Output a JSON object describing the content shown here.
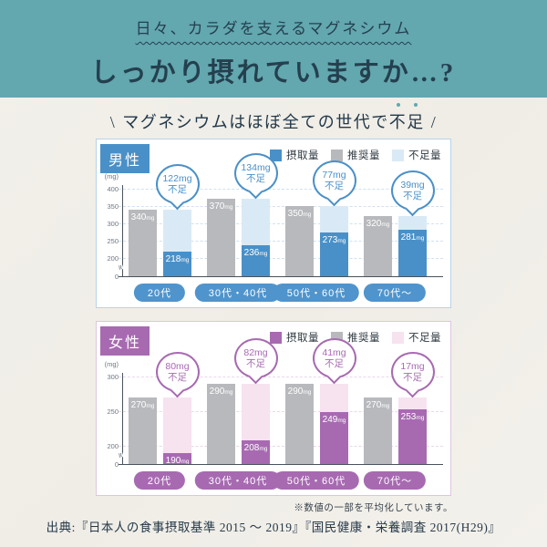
{
  "page": {
    "background": "#f1efe9",
    "header": {
      "bg": "#63a7af",
      "text_color": "#24404f",
      "subtitle": "日々、カラダを支えるマグネシウム",
      "title": "しっかり摂れていますか…?"
    },
    "lead": {
      "open": "\\",
      "before": "マグネシウムはほぼ全ての世代で",
      "emphasis": "不足",
      "close": "/",
      "dot_color": "#63a7af"
    },
    "footnote": "※数値の一部を平均化しています。",
    "source": "出典:『日本人の食事摂取基準 2015 〜 2019』『国民健康・栄養調査 2017(H29)』"
  },
  "chart_data": [
    {
      "type": "bar",
      "group": "男性",
      "axis_label": "(mg)",
      "unit": "mg",
      "deficit_word": "不足",
      "categories": [
        "20代",
        "30代・40代",
        "50代・60代",
        "70代〜"
      ],
      "series": [
        {
          "name": "摂取量",
          "role": "intake",
          "values": [
            218,
            236,
            273,
            281
          ]
        },
        {
          "name": "推奨量",
          "role": "recommended",
          "values": [
            340,
            370,
            350,
            320
          ]
        },
        {
          "name": "不足量",
          "role": "deficit",
          "values": [
            122,
            134,
            77,
            39
          ]
        }
      ],
      "legend": [
        "摂取量",
        "推奨量",
        "不足量"
      ],
      "legend_position": "top-right",
      "grid": true,
      "axis_break": true,
      "yticks": [
        400,
        350,
        300,
        250,
        200,
        0
      ],
      "ymin": 200,
      "ymax": 400,
      "colors": {
        "intake": "#4a90c8",
        "recommended": "#b7b9bc",
        "deficit": "#d9eaf6",
        "accent": "#4a90c8",
        "pill": "#4f94cc",
        "border": "#b9d3e8",
        "grid": "#cfe2f1"
      }
    },
    {
      "type": "bar",
      "group": "女性",
      "axis_label": "(mg)",
      "unit": "mg",
      "deficit_word": "不足",
      "categories": [
        "20代",
        "30代・40代",
        "50代・60代",
        "70代〜"
      ],
      "series": [
        {
          "name": "摂取量",
          "role": "intake",
          "values": [
            190,
            208,
            249,
            253
          ]
        },
        {
          "name": "推奨量",
          "role": "recommended",
          "values": [
            270,
            290,
            290,
            270
          ]
        },
        {
          "name": "不足量",
          "role": "deficit",
          "values": [
            80,
            82,
            41,
            17
          ]
        }
      ],
      "legend": [
        "摂取量",
        "推奨量",
        "不足量"
      ],
      "legend_position": "top-right",
      "grid": true,
      "axis_break": true,
      "yticks": [
        300,
        250,
        200,
        0
      ],
      "ymin": 200,
      "ymax": 300,
      "colors": {
        "intake": "#a76ab1",
        "recommended": "#b7b9bc",
        "deficit": "#f7e2f0",
        "accent": "#a76ab1",
        "pill": "#a76ab1",
        "border": "#dec5de",
        "grid": "#e9d8e9"
      }
    }
  ]
}
